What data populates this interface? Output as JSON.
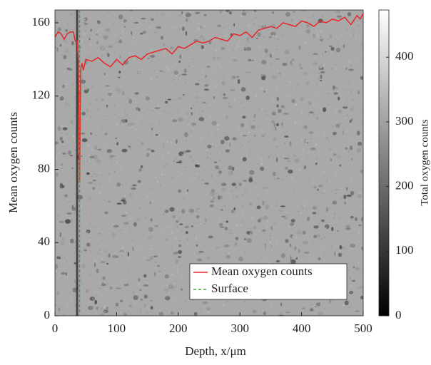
{
  "chart_data": {
    "type": "line",
    "xlabel": "Depth, x/μm",
    "ylabel": "Mean oxygen counts",
    "xlim": [
      0,
      500
    ],
    "xticks": [
      0,
      100,
      200,
      300,
      400,
      500
    ],
    "ylim": [
      0,
      167
    ],
    "yticks": [
      0,
      40,
      80,
      120,
      160
    ],
    "series": [
      {
        "name": "Mean oxygen counts",
        "color": "#e8262a",
        "x": [
          0,
          5,
          10,
          15,
          20,
          25,
          30,
          33,
          36,
          38,
          39,
          40,
          41,
          42,
          44,
          46,
          50,
          60,
          70,
          80,
          90,
          100,
          110,
          120,
          130,
          140,
          150,
          160,
          170,
          180,
          190,
          200,
          210,
          220,
          230,
          240,
          250,
          260,
          270,
          280,
          290,
          300,
          310,
          320,
          330,
          340,
          350,
          360,
          370,
          380,
          390,
          400,
          410,
          420,
          430,
          440,
          450,
          460,
          470,
          480,
          490,
          495,
          500
        ],
        "values": [
          152,
          155,
          154,
          151,
          154,
          155,
          155,
          150,
          150,
          140,
          100,
          73,
          110,
          135,
          138,
          134,
          140,
          139,
          141,
          138,
          136,
          140,
          137,
          141,
          142,
          140,
          143,
          144,
          145,
          146,
          143,
          147,
          146,
          148,
          150,
          149,
          150,
          152,
          151,
          150,
          154,
          153,
          155,
          152,
          156,
          157,
          158,
          157,
          160,
          159,
          158,
          161,
          160,
          158,
          161,
          160,
          162,
          161,
          163,
          159,
          164,
          162,
          165
        ]
      }
    ],
    "vlines": [
      {
        "name": "Surface",
        "color": "#3aa83a",
        "x": 40
      }
    ],
    "legend": "lower right",
    "colorbar": {
      "label": "Total oxygen counts",
      "clim": [
        0,
        473
      ],
      "cticks": [
        0,
        100,
        200,
        300,
        400
      ]
    }
  }
}
